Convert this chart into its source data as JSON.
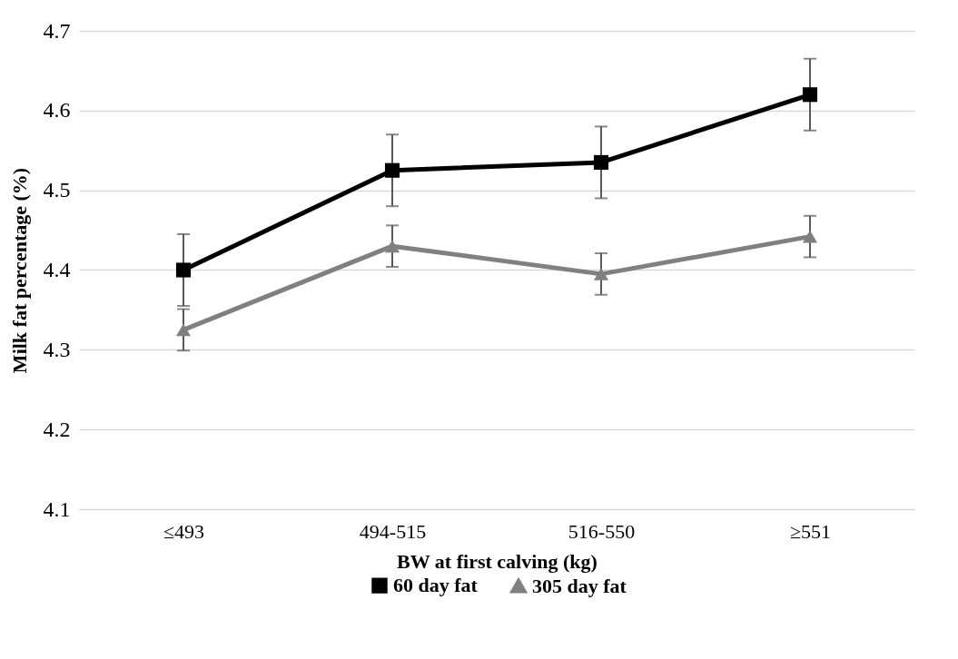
{
  "chart_data": {
    "type": "line",
    "xlabel": "BW at first calving (kg)",
    "ylabel": "Milk fat percentage (%)",
    "categories": [
      "≤493",
      "494-515",
      "516-550",
      "≥551"
    ],
    "series": [
      {
        "name": "60 day fat",
        "color": "#000000",
        "marker": "square",
        "values": [
          4.4,
          4.525,
          4.535,
          4.62
        ],
        "errors": [
          0.045,
          0.045,
          0.045,
          0.045
        ]
      },
      {
        "name": "305 day fat",
        "color": "#808080",
        "marker": "triangle",
        "values": [
          4.325,
          4.43,
          4.395,
          4.442
        ],
        "errors": [
          0.026,
          0.026,
          0.026,
          0.026
        ]
      }
    ],
    "ylim": [
      4.1,
      4.7
    ],
    "yticks": [
      4.1,
      4.2,
      4.3,
      4.4,
      4.5,
      4.6,
      4.7
    ],
    "grid": "y",
    "legend": "bottom"
  }
}
